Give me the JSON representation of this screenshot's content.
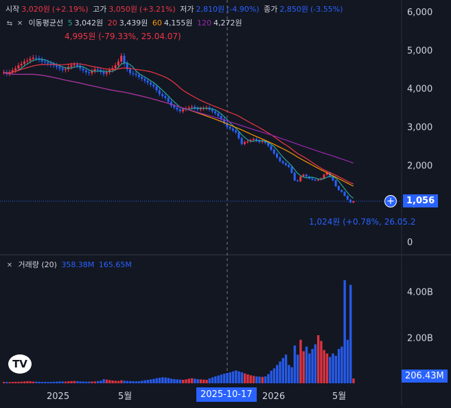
{
  "ohlc_legend": {
    "open_label": "시작",
    "open_value": "3,020원",
    "open_change": "(+2.19%)",
    "high_label": "고가",
    "high_value": "3,050원",
    "high_change": "(+3.21%)",
    "low_label": "저가",
    "low_value": "2,810원",
    "low_change": "(-4.90%)",
    "close_label": "종가",
    "close_value": "2,850원",
    "close_change": "(-3.55%)"
  },
  "ma_legend": {
    "label": "이동평균선",
    "items": [
      {
        "period": "5",
        "value": "3,042원",
        "color": "#26a69a"
      },
      {
        "period": "20",
        "value": "3,439원",
        "color": "#f23645"
      },
      {
        "period": "60",
        "value": "4,155원",
        "color": "#ff9800"
      },
      {
        "period": "120",
        "value": "4,272원",
        "color": "#9c27b0"
      }
    ]
  },
  "annotations": {
    "high_marker": "4,995원 (-79.33%, 25.04.07)",
    "low_marker": "1,024원 (+0.78%, 26.05.2"
  },
  "price_tag": "1,056",
  "volume_legend": {
    "label": "거래량 (20)",
    "value1": "358.38M",
    "value2": "165.65M"
  },
  "volume_tag": "206.43M",
  "crosshair_date": "2025-10-17",
  "logo_text": "TV",
  "chart_data": [
    {
      "type": "candlestick",
      "title": "",
      "y_ticks": [
        "6,000",
        "5,000",
        "4,000",
        "3,000",
        "2,000",
        "1,000",
        "0"
      ],
      "ylim": [
        0,
        6300
      ],
      "x_ticks": [
        "2025",
        "5월",
        "2026",
        "5월"
      ],
      "close": [
        4420,
        4380,
        4420,
        4470,
        4520,
        4600,
        4640,
        4700,
        4720,
        4770,
        4800,
        4780,
        4750,
        4700,
        4680,
        4650,
        4620,
        4600,
        4560,
        4520,
        4480,
        4500,
        4560,
        4600,
        4620,
        4590,
        4520,
        4470,
        4420,
        4400,
        4450,
        4500,
        4480,
        4430,
        4380,
        4420,
        4480,
        4530,
        4600,
        4700,
        4850,
        4650,
        4500,
        4400,
        4380,
        4350,
        4300,
        4250,
        4200,
        4150,
        4100,
        4050,
        3950,
        3850,
        3800,
        3750,
        3650,
        3550,
        3500,
        3450,
        3400,
        3450,
        3480,
        3500,
        3520,
        3480,
        3450,
        3470,
        3490,
        3500,
        3450,
        3400,
        3350,
        3280,
        3200,
        3100,
        3000,
        2950,
        2900,
        2850,
        2700,
        2550,
        2600,
        2620,
        2650,
        2680,
        2640,
        2600,
        2620,
        2580,
        2500,
        2400,
        2300,
        2200,
        2100,
        2050,
        2000,
        1950,
        1800,
        1600,
        1580,
        1700,
        1750,
        1700,
        1650,
        1620,
        1600,
        1620,
        1650,
        1750,
        1800,
        1700,
        1600,
        1450,
        1350,
        1300,
        1200,
        1100,
        1024,
        1056
      ],
      "series": [
        {
          "name": "5",
          "color": "#26a69a"
        },
        {
          "name": "20",
          "color": "#f23645"
        },
        {
          "name": "60",
          "color": "#ff9800"
        },
        {
          "name": "120",
          "color": "#9c27b0"
        }
      ]
    },
    {
      "type": "bar",
      "title": "",
      "y_ticks": [
        "4.00B",
        "2.00B"
      ],
      "ylim": [
        0,
        5000
      ],
      "unit": "M",
      "values": [
        55,
        58,
        52,
        60,
        65,
        62,
        70,
        80,
        90,
        85,
        75,
        70,
        65,
        60,
        60,
        58,
        62,
        65,
        70,
        80,
        78,
        75,
        85,
        95,
        100,
        90,
        80,
        75,
        70,
        72,
        75,
        80,
        95,
        110,
        180,
        160,
        140,
        120,
        110,
        100,
        130,
        110,
        100,
        95,
        90,
        85,
        90,
        110,
        130,
        150,
        170,
        190,
        220,
        240,
        260,
        250,
        230,
        200,
        180,
        170,
        160,
        150,
        170,
        200,
        220,
        200,
        180,
        170,
        160,
        150,
        210,
        260,
        300,
        340,
        380,
        420,
        450,
        480,
        520,
        560,
        520,
        480,
        430,
        390,
        350,
        320,
        300,
        290,
        280,
        300,
        400,
        550,
        650,
        800,
        950,
        1100,
        1250,
        800,
        700,
        1650,
        1250,
        1900,
        1400,
        1600,
        1300,
        1500,
        1700,
        2100,
        1850,
        1450,
        1300,
        1150,
        1300,
        1200,
        1500,
        1600,
        4500,
        1900,
        4300,
        206
      ]
    }
  ]
}
